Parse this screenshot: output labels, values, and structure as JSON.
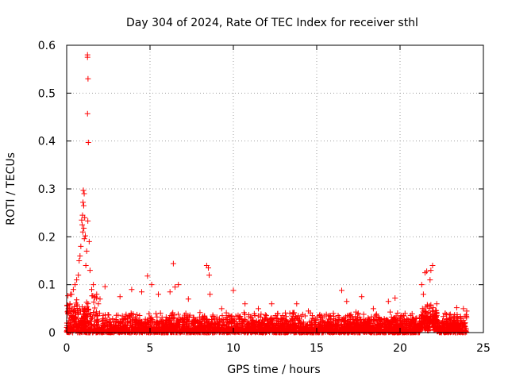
{
  "chart_data": {
    "type": "scatter",
    "title": "Day 304 of 2024, Rate Of TEC Index for receiver sthl",
    "xlabel": "GPS time / hours",
    "ylabel": "ROTI / TECUs",
    "xlim": [
      0,
      25
    ],
    "ylim": [
      0,
      0.6
    ],
    "xticks": [
      0,
      5,
      10,
      15,
      20,
      25
    ],
    "yticks": [
      0,
      0.1,
      0.2,
      0.3,
      0.4,
      0.5,
      0.6
    ],
    "xtick_labels": [
      "0",
      "5",
      "10",
      "15",
      "20",
      "25"
    ],
    "ytick_labels": [
      "0",
      "0.1",
      "0.2",
      "0.3",
      "0.4",
      "0.5",
      "0.6"
    ],
    "grid": true,
    "marker": "+",
    "color": "#ff0000",
    "series": [
      {
        "name": "ROTI",
        "points": [
          [
            1.25,
            0.58
          ],
          [
            1.25,
            0.575
          ],
          [
            1.28,
            0.53
          ],
          [
            1.25,
            0.457
          ],
          [
            1.3,
            0.397
          ],
          [
            1.0,
            0.297
          ],
          [
            1.05,
            0.29
          ],
          [
            0.98,
            0.272
          ],
          [
            1.02,
            0.265
          ],
          [
            0.95,
            0.245
          ],
          [
            1.08,
            0.24
          ],
          [
            0.9,
            0.235
          ],
          [
            1.27,
            0.233
          ],
          [
            0.93,
            0.225
          ],
          [
            1.03,
            0.218
          ],
          [
            0.97,
            0.21
          ],
          [
            1.12,
            0.202
          ],
          [
            1.06,
            0.196
          ],
          [
            0.85,
            0.18
          ],
          [
            1.35,
            0.19
          ],
          [
            0.8,
            0.16
          ],
          [
            1.2,
            0.17
          ],
          [
            0.75,
            0.15
          ],
          [
            1.15,
            0.14
          ],
          [
            0.7,
            0.12
          ],
          [
            1.4,
            0.13
          ],
          [
            0.6,
            0.11
          ],
          [
            0.5,
            0.1
          ],
          [
            0.4,
            0.09
          ],
          [
            0.3,
            0.08
          ],
          [
            0.2,
            0.06
          ],
          [
            0.1,
            0.05
          ],
          [
            1.6,
            0.1
          ],
          [
            1.8,
            0.08
          ],
          [
            2.0,
            0.07
          ],
          [
            1.5,
            0.09
          ],
          [
            1.7,
            0.075
          ],
          [
            2.3,
            0.096
          ],
          [
            1.9,
            0.06
          ],
          [
            3.2,
            0.075
          ],
          [
            3.9,
            0.09
          ],
          [
            4.5,
            0.085
          ],
          [
            4.85,
            0.118
          ],
          [
            5.1,
            0.1
          ],
          [
            5.5,
            0.08
          ],
          [
            6.2,
            0.085
          ],
          [
            6.5,
            0.095
          ],
          [
            6.4,
            0.144
          ],
          [
            6.7,
            0.1
          ],
          [
            7.3,
            0.07
          ],
          [
            8.4,
            0.14
          ],
          [
            8.5,
            0.135
          ],
          [
            8.55,
            0.12
          ],
          [
            8.6,
            0.08
          ],
          [
            9.3,
            0.05
          ],
          [
            10.0,
            0.088
          ],
          [
            10.7,
            0.06
          ],
          [
            11.5,
            0.05
          ],
          [
            12.3,
            0.06
          ],
          [
            13.8,
            0.06
          ],
          [
            14.5,
            0.045
          ],
          [
            15.3,
            0.035
          ],
          [
            16.0,
            0.04
          ],
          [
            16.5,
            0.088
          ],
          [
            16.8,
            0.065
          ],
          [
            17.7,
            0.075
          ],
          [
            18.4,
            0.05
          ],
          [
            19.3,
            0.065
          ],
          [
            19.7,
            0.072
          ],
          [
            20.3,
            0.04
          ],
          [
            21.3,
            0.1
          ],
          [
            21.5,
            0.125
          ],
          [
            21.6,
            0.128
          ],
          [
            21.85,
            0.13
          ],
          [
            21.95,
            0.14
          ],
          [
            21.8,
            0.11
          ],
          [
            21.4,
            0.08
          ],
          [
            22.2,
            0.06
          ],
          [
            22.7,
            0.04
          ],
          [
            23.0,
            0.03
          ],
          [
            23.4,
            0.052
          ],
          [
            23.8,
            0.05
          ],
          [
            24.0,
            0.045
          ]
        ]
      }
    ]
  }
}
